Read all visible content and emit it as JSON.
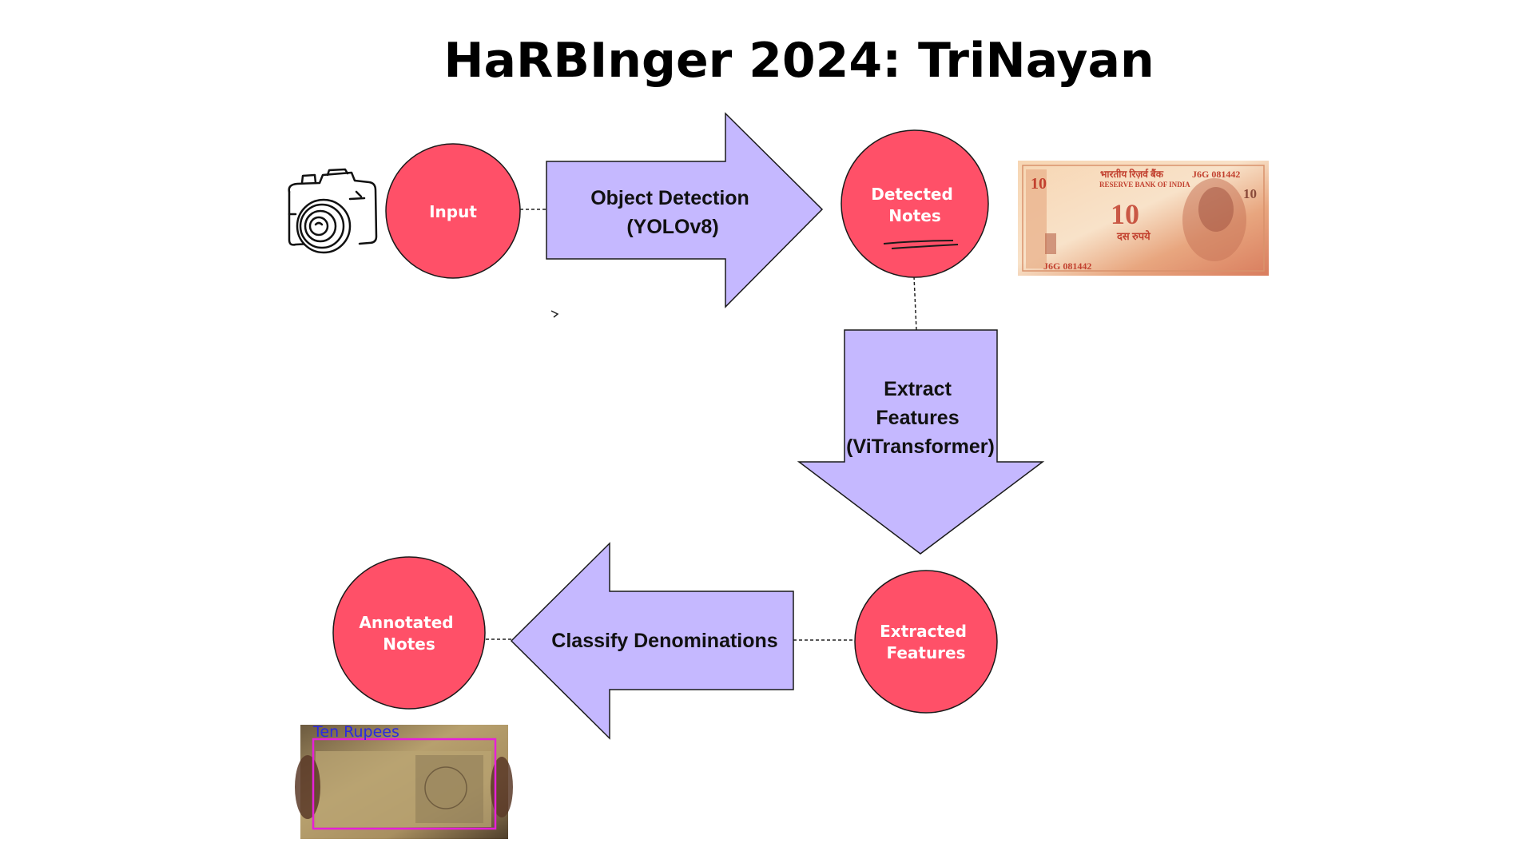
{
  "title": "HaRBInger 2024: TriNayan",
  "colors": {
    "node_fill": "#ff5068",
    "arrow_fill": "#c5b8ff",
    "stroke": "#1a1a1a",
    "box_overlay": "#e620d8",
    "overlay_label": "#2a2ae0"
  },
  "icons": {
    "camera": "camera-icon",
    "banknote": "ten-rupee-note-image",
    "annotated_photo": "annotated-note-photo"
  },
  "nodes": {
    "input": {
      "lines": [
        "Input"
      ]
    },
    "detected": {
      "lines": [
        "Detected",
        "Notes"
      ]
    },
    "extracted": {
      "lines": [
        "Extracted",
        "Features"
      ]
    },
    "annotated": {
      "lines": [
        "Annotated",
        "Notes"
      ]
    }
  },
  "arrows": {
    "detection": {
      "lines": [
        "Object Detection",
        "(YOLOv8)"
      ]
    },
    "features": {
      "lines": [
        "Extract",
        "Features",
        "(ViTransformer)"
      ]
    },
    "classify": {
      "lines": [
        "Classify Denominations"
      ]
    }
  },
  "banknote": {
    "bank_hindi": "भारतीय रिज़र्व बैंक",
    "bank_english": "RESERVE BANK OF INDIA",
    "serial": "J6G 081442",
    "denomination": "10",
    "hindi_value": "दस रुपये"
  },
  "annotated_photo": {
    "detection_label": "Ten Rupees"
  }
}
